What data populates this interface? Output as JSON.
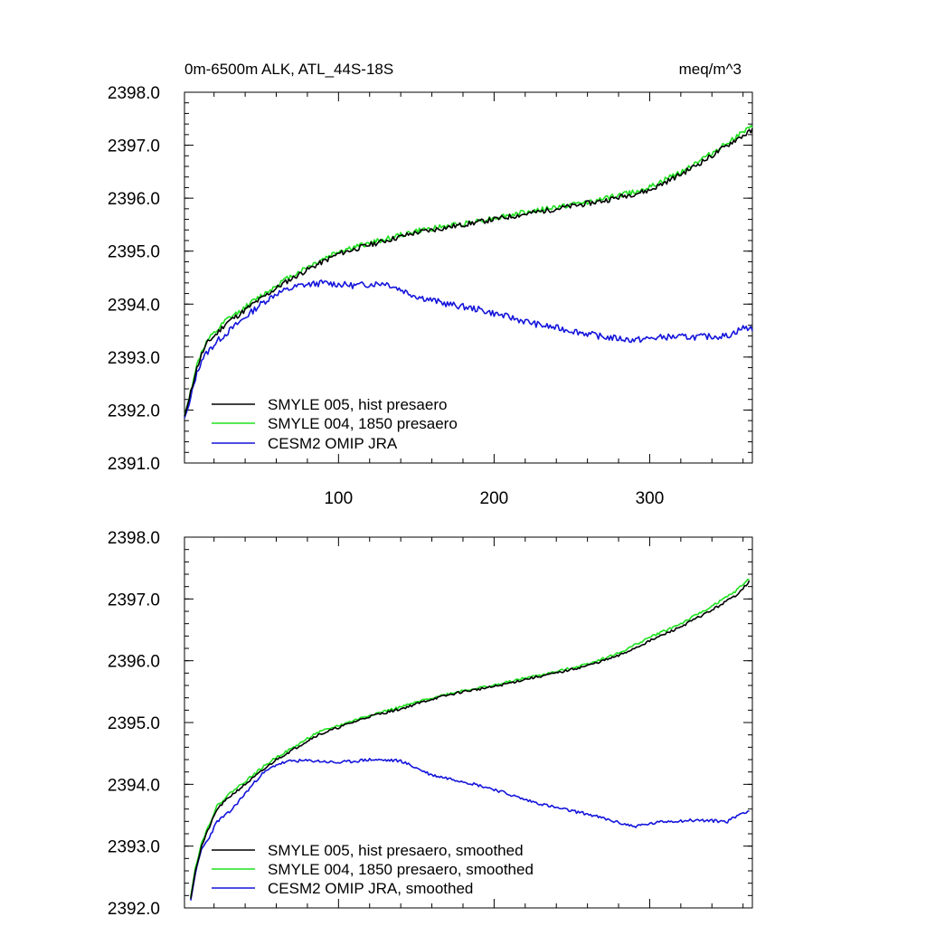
{
  "title_left": "0m-6500m ALK, ATL_44S-18S",
  "title_right": "meq/m^3",
  "colors": {
    "black": "#000000",
    "green": "#1ee11e",
    "blue": "#1414dc"
  },
  "chart_data": [
    {
      "type": "line",
      "title": "0m-6500m ALK, ATL_44S-18S",
      "units": "meq/m^3",
      "xlim": [
        1,
        366
      ],
      "ylim": [
        2391.0,
        2398.0
      ],
      "x_ticks": [
        100,
        200,
        300
      ],
      "x_tick_labels": [
        "100",
        "200",
        "300"
      ],
      "y_ticks": [
        2391.0,
        2392.0,
        2393.0,
        2394.0,
        2395.0,
        2396.0,
        2397.0,
        2398.0
      ],
      "y_tick_labels": [
        "2391.0",
        "2392.0",
        "2393.0",
        "2394.0",
        "2395.0",
        "2396.0",
        "2397.0",
        "2398.0"
      ],
      "legend_position": "bottom-left",
      "series": [
        {
          "name": "SMYLE 005, hist presaero",
          "color": "black",
          "anchors": [
            [
              1,
              2391.88
            ],
            [
              4,
              2392.2
            ],
            [
              8,
              2392.7
            ],
            [
              12,
              2393.05
            ],
            [
              16,
              2393.28
            ],
            [
              22,
              2393.45
            ],
            [
              28,
              2393.65
            ],
            [
              36,
              2393.8
            ],
            [
              45,
              2394.0
            ],
            [
              55,
              2394.2
            ],
            [
              65,
              2394.4
            ],
            [
              80,
              2394.65
            ],
            [
              100,
              2394.95
            ],
            [
              120,
              2395.12
            ],
            [
              150,
              2395.35
            ],
            [
              180,
              2395.5
            ],
            [
              210,
              2395.65
            ],
            [
              240,
              2395.8
            ],
            [
              270,
              2395.95
            ],
            [
              300,
              2396.15
            ],
            [
              320,
              2396.45
            ],
            [
              340,
              2396.8
            ],
            [
              355,
              2397.1
            ],
            [
              366,
              2397.28
            ]
          ],
          "noise": 0.05,
          "seed": 11
        },
        {
          "name": "SMYLE 004, 1850 presaero",
          "color": "green",
          "anchors": [
            [
              1,
              2391.9
            ],
            [
              4,
              2392.22
            ],
            [
              8,
              2392.75
            ],
            [
              12,
              2393.1
            ],
            [
              16,
              2393.32
            ],
            [
              22,
              2393.5
            ],
            [
              28,
              2393.7
            ],
            [
              36,
              2393.85
            ],
            [
              45,
              2394.05
            ],
            [
              55,
              2394.25
            ],
            [
              65,
              2394.45
            ],
            [
              80,
              2394.7
            ],
            [
              100,
              2395.0
            ],
            [
              120,
              2395.15
            ],
            [
              150,
              2395.38
            ],
            [
              180,
              2395.52
            ],
            [
              210,
              2395.68
            ],
            [
              240,
              2395.83
            ],
            [
              270,
              2395.98
            ],
            [
              300,
              2396.2
            ],
            [
              320,
              2396.5
            ],
            [
              340,
              2396.85
            ],
            [
              355,
              2397.15
            ],
            [
              366,
              2397.34
            ]
          ],
          "noise": 0.05,
          "seed": 12
        },
        {
          "name": "CESM2 OMIP JRA",
          "color": "blue",
          "anchors": [
            [
              1,
              2391.85
            ],
            [
              4,
              2392.1
            ],
            [
              8,
              2392.6
            ],
            [
              12,
              2392.95
            ],
            [
              16,
              2393.1
            ],
            [
              22,
              2393.3
            ],
            [
              30,
              2393.5
            ],
            [
              40,
              2393.75
            ],
            [
              50,
              2394.0
            ],
            [
              60,
              2394.2
            ],
            [
              75,
              2394.35
            ],
            [
              90,
              2394.4
            ],
            [
              110,
              2394.35
            ],
            [
              130,
              2394.4
            ],
            [
              150,
              2394.15
            ],
            [
              170,
              2394.0
            ],
            [
              190,
              2393.9
            ],
            [
              210,
              2393.75
            ],
            [
              230,
              2393.6
            ],
            [
              250,
              2393.5
            ],
            [
              270,
              2393.38
            ],
            [
              290,
              2393.32
            ],
            [
              310,
              2393.38
            ],
            [
              330,
              2393.38
            ],
            [
              350,
              2393.4
            ],
            [
              360,
              2393.55
            ],
            [
              366,
              2393.55
            ]
          ],
          "noise": 0.06,
          "seed": 13
        }
      ]
    },
    {
      "type": "line",
      "xlim": [
        1,
        366
      ],
      "ylim": [
        2392.0,
        2398.0
      ],
      "x_ticks": [
        100,
        200,
        300
      ],
      "y_ticks": [
        2392.0,
        2393.0,
        2394.0,
        2395.0,
        2396.0,
        2397.0,
        2398.0
      ],
      "y_tick_labels": [
        "2392.0",
        "2393.0",
        "2394.0",
        "2395.0",
        "2396.0",
        "2397.0",
        "2398.0"
      ],
      "legend_position": "bottom-left",
      "series": [
        {
          "name": "SMYLE 005, hist presaero, smoothed",
          "color": "black",
          "anchors": [
            [
              5,
              2392.15
            ],
            [
              8,
              2392.6
            ],
            [
              12,
              2393.0
            ],
            [
              16,
              2393.25
            ],
            [
              22,
              2393.6
            ],
            [
              30,
              2393.8
            ],
            [
              40,
              2394.0
            ],
            [
              50,
              2394.2
            ],
            [
              60,
              2394.4
            ],
            [
              70,
              2394.55
            ],
            [
              85,
              2394.78
            ],
            [
              100,
              2394.92
            ],
            [
              120,
              2395.1
            ],
            [
              140,
              2395.22
            ],
            [
              160,
              2395.38
            ],
            [
              180,
              2395.5
            ],
            [
              200,
              2395.58
            ],
            [
              220,
              2395.7
            ],
            [
              240,
              2395.8
            ],
            [
              260,
              2395.92
            ],
            [
              280,
              2396.08
            ],
            [
              300,
              2396.32
            ],
            [
              320,
              2396.55
            ],
            [
              340,
              2396.82
            ],
            [
              355,
              2397.05
            ],
            [
              364,
              2397.28
            ]
          ],
          "noise": 0.02,
          "seed": 21
        },
        {
          "name": "SMYLE 004, 1850 presaero, smoothed",
          "color": "green",
          "anchors": [
            [
              5,
              2392.18
            ],
            [
              8,
              2392.65
            ],
            [
              12,
              2393.05
            ],
            [
              16,
              2393.3
            ],
            [
              22,
              2393.65
            ],
            [
              30,
              2393.85
            ],
            [
              40,
              2394.05
            ],
            [
              50,
              2394.25
            ],
            [
              60,
              2394.44
            ],
            [
              70,
              2394.58
            ],
            [
              85,
              2394.82
            ],
            [
              100,
              2394.95
            ],
            [
              120,
              2395.12
            ],
            [
              140,
              2395.25
            ],
            [
              160,
              2395.4
            ],
            [
              180,
              2395.52
            ],
            [
              200,
              2395.6
            ],
            [
              220,
              2395.72
            ],
            [
              240,
              2395.82
            ],
            [
              260,
              2395.95
            ],
            [
              280,
              2396.12
            ],
            [
              300,
              2396.38
            ],
            [
              320,
              2396.6
            ],
            [
              340,
              2396.88
            ],
            [
              355,
              2397.12
            ],
            [
              364,
              2397.33
            ]
          ],
          "noise": 0.02,
          "seed": 22
        },
        {
          "name": "CESM2 OMIP JRA, smoothed",
          "color": "blue",
          "anchors": [
            [
              5,
              2392.12
            ],
            [
              8,
              2392.55
            ],
            [
              12,
              2392.95
            ],
            [
              16,
              2393.1
            ],
            [
              22,
              2393.4
            ],
            [
              30,
              2393.55
            ],
            [
              40,
              2393.85
            ],
            [
              50,
              2394.15
            ],
            [
              60,
              2394.32
            ],
            [
              70,
              2394.38
            ],
            [
              85,
              2394.38
            ],
            [
              100,
              2394.35
            ],
            [
              120,
              2394.4
            ],
            [
              140,
              2394.38
            ],
            [
              160,
              2394.15
            ],
            [
              180,
              2394.05
            ],
            [
              200,
              2393.92
            ],
            [
              220,
              2393.75
            ],
            [
              240,
              2393.62
            ],
            [
              260,
              2393.52
            ],
            [
              280,
              2393.38
            ],
            [
              290,
              2393.32
            ],
            [
              310,
              2393.4
            ],
            [
              330,
              2393.42
            ],
            [
              350,
              2393.4
            ],
            [
              358,
              2393.52
            ],
            [
              364,
              2393.58
            ]
          ],
          "noise": 0.025,
          "seed": 23
        }
      ]
    }
  ]
}
